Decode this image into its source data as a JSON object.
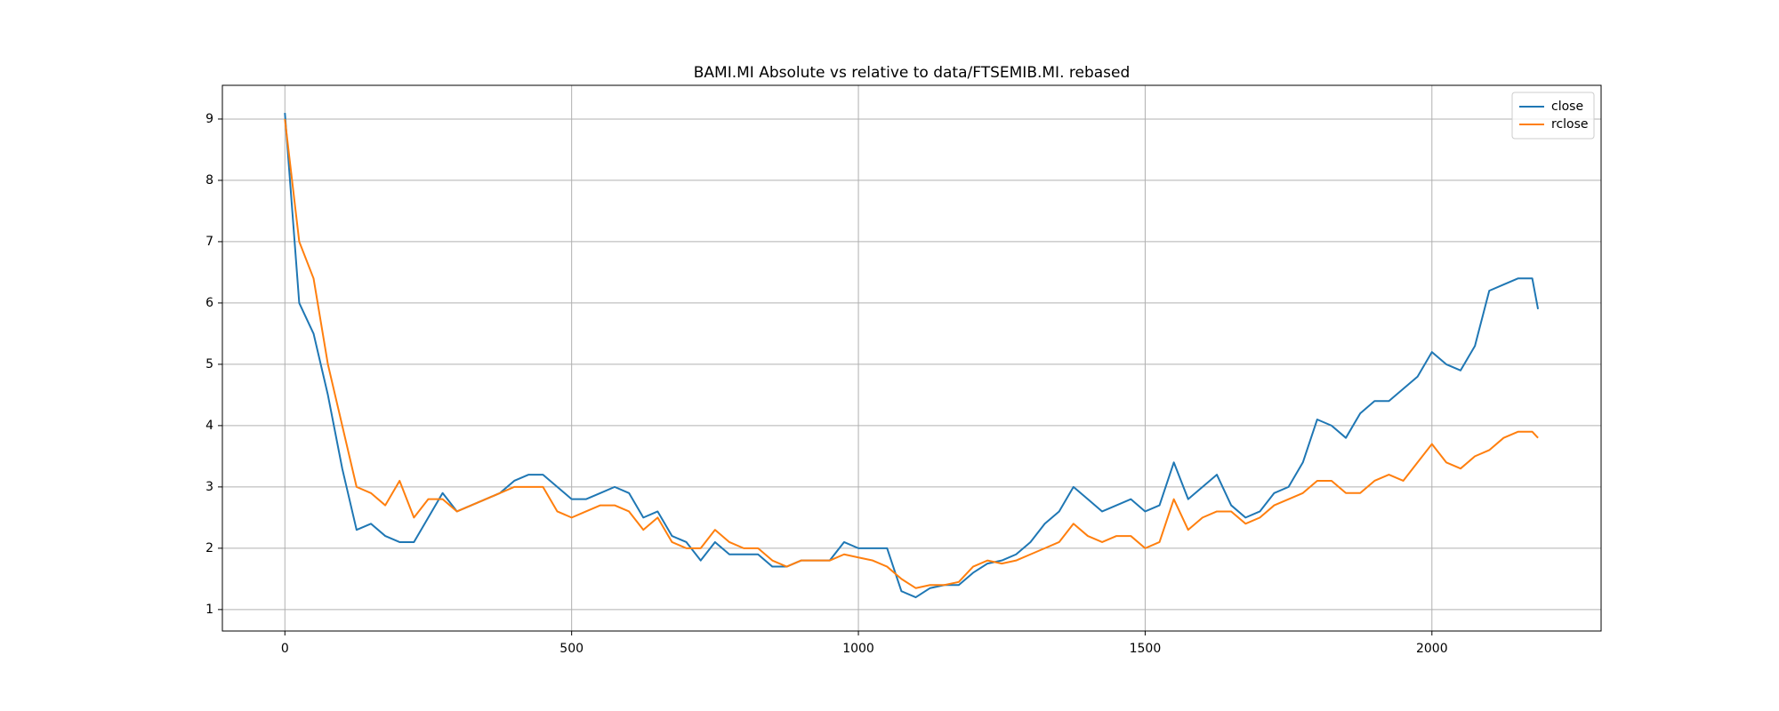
{
  "chart_data": {
    "type": "line",
    "title": "BAMI.MI Absolute vs relative to data/FTSEMIB.MI. rebased",
    "x": [
      0,
      25,
      50,
      75,
      100,
      125,
      150,
      175,
      200,
      225,
      250,
      275,
      300,
      325,
      350,
      375,
      400,
      425,
      450,
      475,
      500,
      525,
      550,
      575,
      600,
      625,
      650,
      675,
      700,
      725,
      750,
      775,
      800,
      825,
      850,
      875,
      900,
      925,
      950,
      975,
      1000,
      1025,
      1050,
      1075,
      1100,
      1125,
      1150,
      1175,
      1200,
      1225,
      1250,
      1275,
      1300,
      1325,
      1350,
      1375,
      1400,
      1425,
      1450,
      1475,
      1500,
      1525,
      1550,
      1575,
      1600,
      1625,
      1650,
      1675,
      1700,
      1725,
      1750,
      1775,
      1800,
      1825,
      1850,
      1875,
      1900,
      1925,
      1950,
      1975,
      2000,
      2025,
      2050,
      2075,
      2100,
      2125,
      2150,
      2175,
      2185
    ],
    "series": [
      {
        "name": "close",
        "color": "#1f77b4",
        "values": [
          9.1,
          6.0,
          5.5,
          4.5,
          3.3,
          2.3,
          2.4,
          2.2,
          2.1,
          2.1,
          2.5,
          2.9,
          2.6,
          2.7,
          2.8,
          2.9,
          3.1,
          3.2,
          3.2,
          3.0,
          2.8,
          2.8,
          2.9,
          3.0,
          2.9,
          2.5,
          2.6,
          2.2,
          2.1,
          1.8,
          2.1,
          1.9,
          1.9,
          1.9,
          1.7,
          1.7,
          1.8,
          1.8,
          1.8,
          2.1,
          2.0,
          2.0,
          2.0,
          1.3,
          1.2,
          1.35,
          1.4,
          1.4,
          1.6,
          1.75,
          1.8,
          1.9,
          2.1,
          2.4,
          2.6,
          3.0,
          2.8,
          2.6,
          2.7,
          2.8,
          2.6,
          2.7,
          3.4,
          2.8,
          3.0,
          3.2,
          2.7,
          2.5,
          2.6,
          2.9,
          3.0,
          3.4,
          4.1,
          4.0,
          3.8,
          4.2,
          4.4,
          4.4,
          4.6,
          4.8,
          5.2,
          5.0,
          4.9,
          5.3,
          6.2,
          6.3,
          6.4,
          6.4,
          5.9
        ]
      },
      {
        "name": "rclose",
        "color": "#ff7f0e",
        "values": [
          9.0,
          7.0,
          6.4,
          5.0,
          4.0,
          3.0,
          2.9,
          2.7,
          3.1,
          2.5,
          2.8,
          2.8,
          2.6,
          2.7,
          2.8,
          2.9,
          3.0,
          3.0,
          3.0,
          2.6,
          2.5,
          2.6,
          2.7,
          2.7,
          2.6,
          2.3,
          2.5,
          2.1,
          2.0,
          2.0,
          2.3,
          2.1,
          2.0,
          2.0,
          1.8,
          1.7,
          1.8,
          1.8,
          1.8,
          1.9,
          1.85,
          1.8,
          1.7,
          1.5,
          1.35,
          1.4,
          1.4,
          1.45,
          1.7,
          1.8,
          1.75,
          1.8,
          1.9,
          2.0,
          2.1,
          2.4,
          2.2,
          2.1,
          2.2,
          2.2,
          2.0,
          2.1,
          2.8,
          2.3,
          2.5,
          2.6,
          2.6,
          2.4,
          2.5,
          2.7,
          2.8,
          2.9,
          3.1,
          3.1,
          2.9,
          2.9,
          3.1,
          3.2,
          3.1,
          3.4,
          3.7,
          3.4,
          3.3,
          3.5,
          3.6,
          3.8,
          3.9,
          3.9,
          3.8
        ]
      }
    ],
    "xlim": [
      -109,
      2295
    ],
    "xticks": [
      0,
      500,
      1000,
      1500,
      2000
    ],
    "ylim": [
      0.65,
      9.55
    ],
    "yticks": [
      1,
      2,
      3,
      4,
      5,
      6,
      7,
      8,
      9
    ],
    "grid": true,
    "legend": "upper right"
  }
}
